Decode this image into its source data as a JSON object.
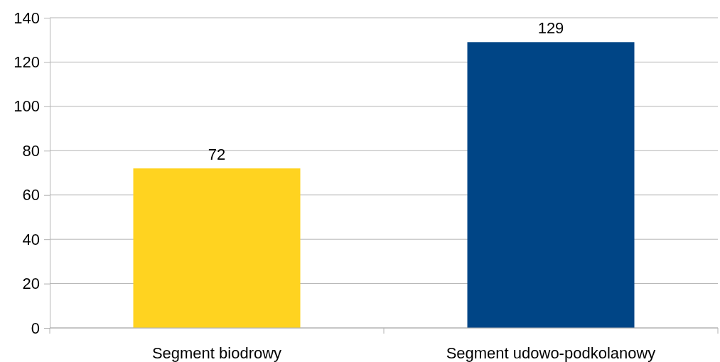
{
  "chart_data": {
    "type": "bar",
    "categories": [
      "Segment biodrowy",
      "Segment udowo-podkolanowy"
    ],
    "values": [
      72,
      129
    ],
    "colors": [
      "#ffd320",
      "#004586"
    ],
    "ylim": [
      0,
      140
    ],
    "yticks": [
      0,
      20,
      40,
      60,
      80,
      100,
      120,
      140
    ],
    "grid": "y",
    "data_labels": true
  }
}
